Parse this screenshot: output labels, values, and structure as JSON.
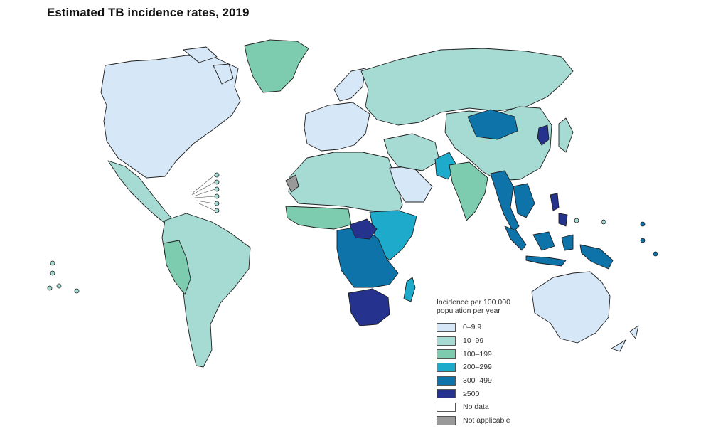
{
  "title": "Estimated TB incidence rates, 2019",
  "legend": {
    "title": "Incidence per 100 000 population per year",
    "items": [
      {
        "label": "0–9.9",
        "color": "#d6e8f7"
      },
      {
        "label": "10–99",
        "color": "#a6dbd4"
      },
      {
        "label": "100–199",
        "color": "#7dccb0"
      },
      {
        "label": "200–299",
        "color": "#1eaacb"
      },
      {
        "label": "300–499",
        "color": "#0d73a9"
      },
      {
        "label": "≥500",
        "color": "#25338f"
      },
      {
        "label": "No data",
        "color": "#ffffff"
      },
      {
        "label": "Not applicable",
        "color": "#999999"
      }
    ]
  },
  "regions": [
    {
      "name": "north-america",
      "category": "0–9.9"
    },
    {
      "name": "greenland",
      "category": "100–199"
    },
    {
      "name": "mexico-central-america",
      "category": "10–99"
    },
    {
      "name": "south-america",
      "category": "10–99"
    },
    {
      "name": "andean-south-america",
      "category": "100–199"
    },
    {
      "name": "western-europe",
      "category": "0–9.9"
    },
    {
      "name": "eastern-europe-russia",
      "category": "10–99"
    },
    {
      "name": "north-africa",
      "category": "10–99"
    },
    {
      "name": "western-sahara",
      "category": "Not applicable"
    },
    {
      "name": "west-africa",
      "category": "100–199"
    },
    {
      "name": "east-africa",
      "category": "200–299"
    },
    {
      "name": "central-africa",
      "category": "300–499"
    },
    {
      "name": "congo-basin",
      "category": "≥500"
    },
    {
      "name": "southern-africa",
      "category": "≥500"
    },
    {
      "name": "madagascar",
      "category": "200–299"
    },
    {
      "name": "arabian-peninsula",
      "category": "0–9.9"
    },
    {
      "name": "middle-east",
      "category": "10–99"
    },
    {
      "name": "pakistan",
      "category": "200–299"
    },
    {
      "name": "india",
      "category": "100–199"
    },
    {
      "name": "china",
      "category": "10–99"
    },
    {
      "name": "mongolia",
      "category": "300–499"
    },
    {
      "name": "north-korea",
      "category": "≥500"
    },
    {
      "name": "myanmar-southeast-asia",
      "category": "300–499"
    },
    {
      "name": "philippines",
      "category": "≥500"
    },
    {
      "name": "indonesia",
      "category": "300–499"
    },
    {
      "name": "papua-new-guinea",
      "category": "300–499"
    },
    {
      "name": "australia",
      "category": "0–9.9"
    },
    {
      "name": "new-zealand",
      "category": "0–9.9"
    },
    {
      "name": "japan",
      "category": "10–99"
    }
  ]
}
